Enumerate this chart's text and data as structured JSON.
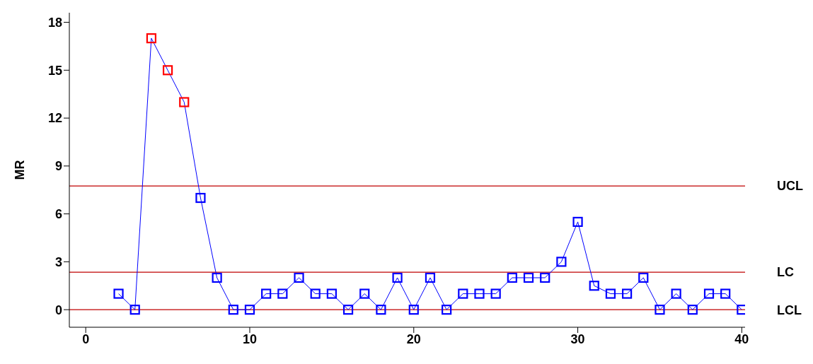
{
  "chart_data": {
    "type": "line",
    "ylabel": "MR",
    "x": [
      2,
      3,
      4,
      5,
      6,
      7,
      8,
      9,
      10,
      11,
      12,
      13,
      14,
      15,
      16,
      17,
      18,
      19,
      20,
      21,
      22,
      23,
      24,
      25,
      26,
      27,
      28,
      29,
      30,
      31,
      32,
      33,
      34,
      35,
      36,
      37,
      38,
      39,
      40
    ],
    "series": [
      {
        "color": "#0000ff",
        "colors": [
          "#0000ff",
          "#0000ff",
          "#ff0000",
          "#ff0000",
          "#ff0000",
          "#0000ff",
          "#0000ff",
          "#0000ff",
          "#0000ff",
          "#0000ff",
          "#0000ff",
          "#0000ff",
          "#0000ff",
          "#0000ff",
          "#0000ff",
          "#0000ff",
          "#0000ff",
          "#0000ff",
          "#0000ff",
          "#0000ff",
          "#0000ff",
          "#0000ff",
          "#0000ff",
          "#0000ff",
          "#0000ff",
          "#0000ff",
          "#0000ff",
          "#0000ff",
          "#0000ff",
          "#0000ff",
          "#0000ff",
          "#0000ff",
          "#0000ff",
          "#0000ff",
          "#0000ff",
          "#0000ff",
          "#0000ff",
          "#0000ff",
          "#0000ff"
        ],
        "values": [
          1,
          0,
          17,
          15,
          13,
          7,
          2,
          0,
          0,
          1,
          1,
          2,
          1,
          1,
          0,
          1,
          0,
          2,
          0,
          2,
          0,
          1,
          1,
          1,
          2,
          2,
          2,
          3,
          5.5,
          1.5,
          1,
          1,
          2,
          0,
          1,
          0,
          1,
          1,
          0
        ]
      }
    ],
    "xlim": [
      -1,
      40.2
    ],
    "xticks": [
      0,
      10,
      20,
      30,
      40
    ],
    "ylim": [
      -1.1,
      18.6
    ],
    "yticks": [
      0,
      3,
      6,
      9,
      12,
      15,
      18
    ],
    "ref_lines": [
      {
        "axis": "y",
        "value": 7.75,
        "label": "UCL",
        "color": "#c00000"
      },
      {
        "axis": "y",
        "value": 2.35,
        "label": "LC",
        "color": "#c00000"
      },
      {
        "axis": "y",
        "value": 0,
        "label": "LCL",
        "color": "#c00000"
      }
    ],
    "grid": false,
    "legend": false,
    "marker": "square",
    "line_style": "solid"
  }
}
